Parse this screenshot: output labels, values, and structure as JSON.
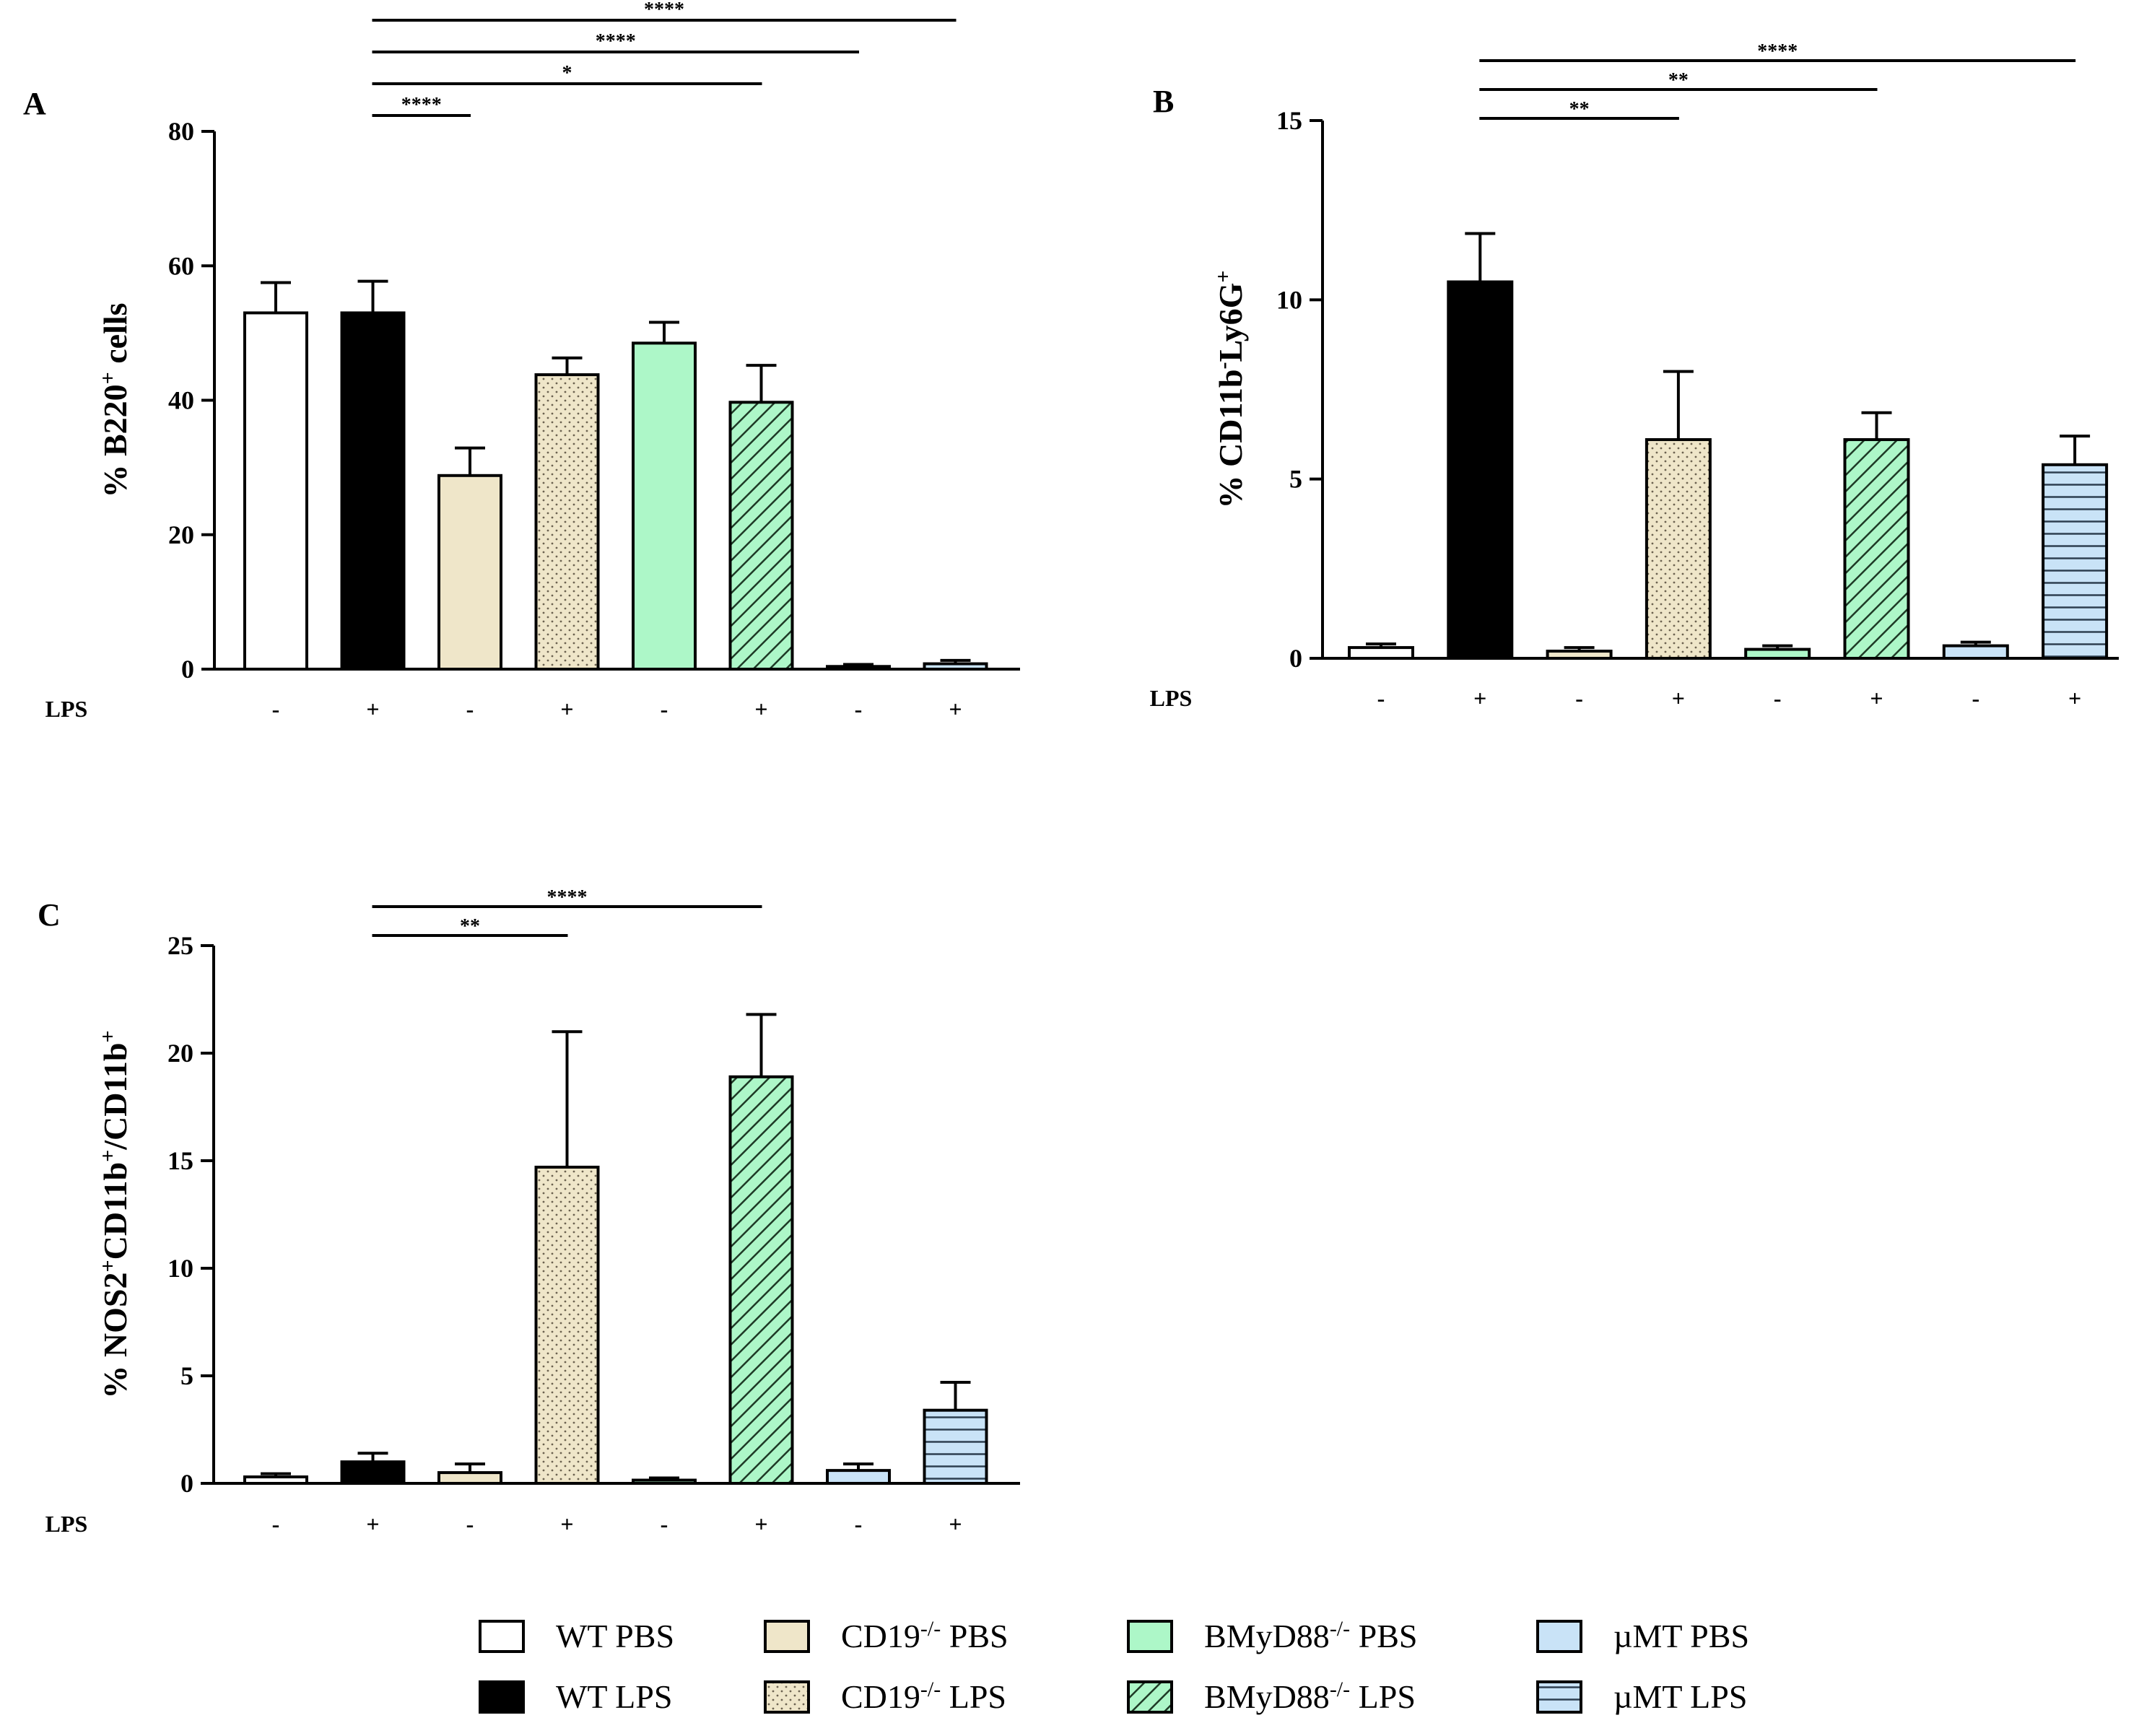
{
  "figure": {
    "legend": [
      {
        "group": "WT PBS",
        "label": "WT PBS",
        "fill": "#ffffff",
        "pattern": "none"
      },
      {
        "group": "WT LPS",
        "label": "WT LPS",
        "fill": "#000000",
        "pattern": "none"
      },
      {
        "group": "CD19 PBS",
        "label": "CD19",
        "sup": "-/-",
        "suffix": "PBS",
        "fill": "#efe6c9",
        "pattern": "none"
      },
      {
        "group": "CD19 LPS",
        "label": "CD19",
        "sup": "-/-",
        "suffix": "LPS",
        "fill": "#efe6c9",
        "pattern": "dots"
      },
      {
        "group": "BMyD88 PBS",
        "label": "BMyD88",
        "sup": "-/-",
        "suffix": "PBS",
        "fill": "#adf7c8",
        "pattern": "none"
      },
      {
        "group": "BMyD88 LPS",
        "label": "BMyD88",
        "sup": "-/-",
        "suffix": "LPS",
        "fill": "#adf7c8",
        "pattern": "hatch"
      },
      {
        "group": "µMT PBS",
        "label": "µMT PBS",
        "fill": "#c9e3f7",
        "pattern": "none"
      },
      {
        "group": "µMT LPS",
        "label": "µMT LPS",
        "fill": "#c9e3f7",
        "pattern": "hlines"
      }
    ]
  },
  "chart_data": [
    {
      "id": "A",
      "panel_label": "A",
      "type": "bar",
      "ylabel_parts": [
        {
          "t": "% B220"
        },
        {
          "t": "+",
          "sup": true
        },
        {
          "t": " cells"
        }
      ],
      "ylim": [
        0,
        80
      ],
      "yticks": [
        "0",
        "20",
        "40",
        "60",
        "80"
      ],
      "xaxis_row_label": "LPS",
      "categories": [
        "-",
        "+",
        "-",
        "+",
        "-",
        "+",
        "-",
        "+"
      ],
      "groups": [
        "WT PBS",
        "WT LPS",
        "CD19 PBS",
        "CD19 LPS",
        "BMyD88 PBS",
        "BMyD88 LPS",
        "µMT PBS",
        "µMT LPS"
      ],
      "values": [
        53,
        53,
        28.8,
        43.8,
        48.5,
        39.7,
        0.4,
        0.8
      ],
      "errors": [
        4.5,
        4.7,
        4.1,
        2.5,
        3.1,
        5.5,
        0.3,
        0.5
      ],
      "significance": [
        {
          "from": 1,
          "to": 2,
          "label": "****"
        },
        {
          "from": 1,
          "to": 5,
          "label": "*"
        },
        {
          "from": 1,
          "to": 6,
          "label": "****"
        },
        {
          "from": 1,
          "to": 7,
          "label": "****"
        }
      ]
    },
    {
      "id": "B",
      "panel_label": "B",
      "type": "bar",
      "ylabel_parts": [
        {
          "t": "% CD11b"
        },
        {
          "t": "-",
          "sup": true
        },
        {
          "t": "Ly6G"
        },
        {
          "t": "+",
          "sup": true
        }
      ],
      "ylim": [
        0,
        15
      ],
      "yticks": [
        "0",
        "5",
        "10",
        "15"
      ],
      "xaxis_row_label": "LPS",
      "categories": [
        "-",
        "+",
        "-",
        "+",
        "-",
        "+",
        "-",
        "+"
      ],
      "groups": [
        "WT PBS",
        "WT LPS",
        "CD19 PBS",
        "CD19 LPS",
        "BMyD88 PBS",
        "BMyD88 LPS",
        "µMT PBS",
        "µMT LPS"
      ],
      "values": [
        0.3,
        10.5,
        0.2,
        6.1,
        0.25,
        6.1,
        0.35,
        5.4
      ],
      "errors": [
        0.1,
        1.35,
        0.1,
        1.9,
        0.1,
        0.75,
        0.1,
        0.8
      ],
      "significance": [
        {
          "from": 1,
          "to": 3,
          "label": "**"
        },
        {
          "from": 1,
          "to": 5,
          "label": "**"
        },
        {
          "from": 1,
          "to": 7,
          "label": "****"
        }
      ]
    },
    {
      "id": "C",
      "panel_label": "C",
      "type": "bar",
      "ylabel_parts": [
        {
          "t": "% NOS2"
        },
        {
          "t": "+",
          "sup": true
        },
        {
          "t": "CD11b"
        },
        {
          "t": "+",
          "sup": true
        },
        {
          "t": "/CD11b"
        },
        {
          "t": "+",
          "sup": true
        }
      ],
      "ylim": [
        0,
        25
      ],
      "yticks": [
        "0",
        "5",
        "10",
        "15",
        "20",
        "25"
      ],
      "xaxis_row_label": "LPS",
      "categories": [
        "-",
        "+",
        "-",
        "+",
        "-",
        "+",
        "-",
        "+"
      ],
      "groups": [
        "WT PBS",
        "WT LPS",
        "CD19 PBS",
        "CD19 LPS",
        "BMyD88 PBS",
        "BMyD88 LPS",
        "µMT PBS",
        "µMT LPS"
      ],
      "values": [
        0.3,
        1.0,
        0.5,
        14.7,
        0.15,
        18.9,
        0.6,
        3.4
      ],
      "errors": [
        0.15,
        0.4,
        0.4,
        6.3,
        0.1,
        2.9,
        0.3,
        1.3
      ],
      "significance": [
        {
          "from": 1,
          "to": 3,
          "label": "**"
        },
        {
          "from": 1,
          "to": 5,
          "label": "****"
        }
      ]
    }
  ]
}
